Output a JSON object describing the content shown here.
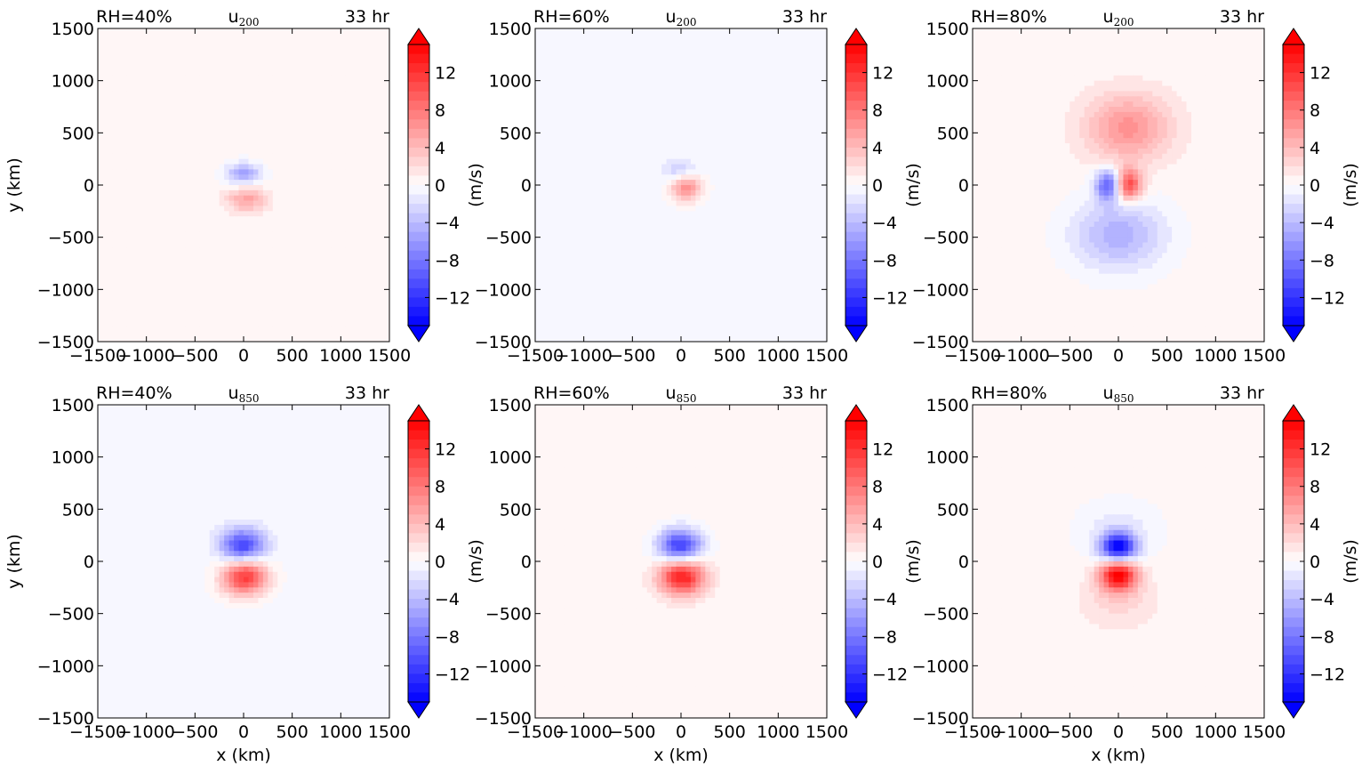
{
  "chart_data": {
    "type": "heatmap",
    "panel_layout": "2 rows x 3 columns",
    "colormap": "bwr (blue-white-red), diverging, extended both ends",
    "colorbar": {
      "ticks": [
        12,
        8,
        4,
        0,
        -4,
        -8,
        -12
      ],
      "tick_labels": [
        "12",
        "8",
        "4",
        "0",
        "−4",
        "−8",
        "−12"
      ],
      "range": [
        -15,
        15
      ],
      "label": "(m/s)",
      "extend": "both"
    },
    "x_ticks": [
      -1500,
      -1000,
      -500,
      0,
      500,
      1000,
      1500
    ],
    "x_tick_labels": [
      "−1500",
      "−1000",
      "−500",
      "0",
      "500",
      "1000",
      "1500"
    ],
    "y_ticks": [
      1500,
      1000,
      500,
      0,
      -500,
      -1000,
      -1500
    ],
    "y_tick_labels": [
      "1500",
      "1000",
      "500",
      "0",
      "−500",
      "−1000",
      "−1500"
    ],
    "xlim": [
      -1500,
      1500
    ],
    "ylim": [
      -1500,
      1500
    ],
    "xlabel": "x (km)",
    "ylabel": "y (km)",
    "grid": false,
    "panels": [
      {
        "row": 0,
        "col": 0,
        "rh": "RH=40%",
        "var_main": "u",
        "var_sub": "200",
        "time": "33 hr",
        "background": [
          {
            "x": 0,
            "y": 0,
            "value": 0.4
          }
        ],
        "blobs": [
          {
            "x": 0,
            "y": 110,
            "rx": 260,
            "ry": 150,
            "peak": -6
          },
          {
            "x": 30,
            "y": -140,
            "rx": 290,
            "ry": 170,
            "peak": 5
          }
        ]
      },
      {
        "row": 0,
        "col": 1,
        "rh": "RH=60%",
        "var_main": "u",
        "var_sub": "200",
        "time": "33 hr",
        "background": [
          {
            "x": 0,
            "y": 0,
            "value": -0.4
          }
        ],
        "blobs": [
          {
            "x": 0,
            "y": 110,
            "rx": 260,
            "ry": 170,
            "peak": -4
          },
          {
            "x": 50,
            "y": -10,
            "rx": 240,
            "ry": 200,
            "peak": 8
          }
        ]
      },
      {
        "row": 0,
        "col": 2,
        "rh": "RH=80%",
        "var_main": "u",
        "var_sub": "200",
        "time": "33 hr",
        "background": [
          {
            "x": 0,
            "y": 0,
            "value": 0.4
          }
        ],
        "blobs": [
          {
            "x": 100,
            "y": 550,
            "rx": 650,
            "ry": 480,
            "peak": 6
          },
          {
            "x": 0,
            "y": -480,
            "rx": 700,
            "ry": 500,
            "peak": -5
          },
          {
            "x": -100,
            "y": 0,
            "rx": 200,
            "ry": 220,
            "peak": -10
          },
          {
            "x": 100,
            "y": 0,
            "rx": 200,
            "ry": 220,
            "peak": 11
          }
        ]
      },
      {
        "row": 1,
        "col": 0,
        "rh": "RH=40%",
        "var_main": "u",
        "var_sub": "850",
        "time": "33 hr",
        "background": [
          {
            "x": 0,
            "y": 0,
            "value": -0.4
          }
        ],
        "blobs": [
          {
            "x": -10,
            "y": 150,
            "rx": 320,
            "ry": 230,
            "peak": -11
          },
          {
            "x": 10,
            "y": -150,
            "rx": 340,
            "ry": 250,
            "peak": 12
          }
        ]
      },
      {
        "row": 1,
        "col": 1,
        "rh": "RH=60%",
        "var_main": "u",
        "var_sub": "850",
        "time": "33 hr",
        "background": [
          {
            "x": 0,
            "y": 0,
            "value": 0.4
          }
        ],
        "blobs": [
          {
            "x": -10,
            "y": 150,
            "rx": 320,
            "ry": 230,
            "peak": -12
          },
          {
            "x": 10,
            "y": -150,
            "rx": 340,
            "ry": 250,
            "peak": 13
          }
        ]
      },
      {
        "row": 1,
        "col": 2,
        "rh": "RH=80%",
        "var_main": "u",
        "var_sub": "850",
        "time": "33 hr",
        "background": [
          {
            "x": 0,
            "y": 0,
            "value": 0.4
          }
        ],
        "blobs": [
          {
            "x": 0,
            "y": 280,
            "rx": 600,
            "ry": 420,
            "peak": -2
          },
          {
            "x": 0,
            "y": -380,
            "rx": 550,
            "ry": 380,
            "peak": 2
          },
          {
            "x": 0,
            "y": 130,
            "rx": 260,
            "ry": 200,
            "peak": -15
          },
          {
            "x": 0,
            "y": -130,
            "rx": 280,
            "ry": 220,
            "peak": 15
          }
        ]
      }
    ]
  }
}
